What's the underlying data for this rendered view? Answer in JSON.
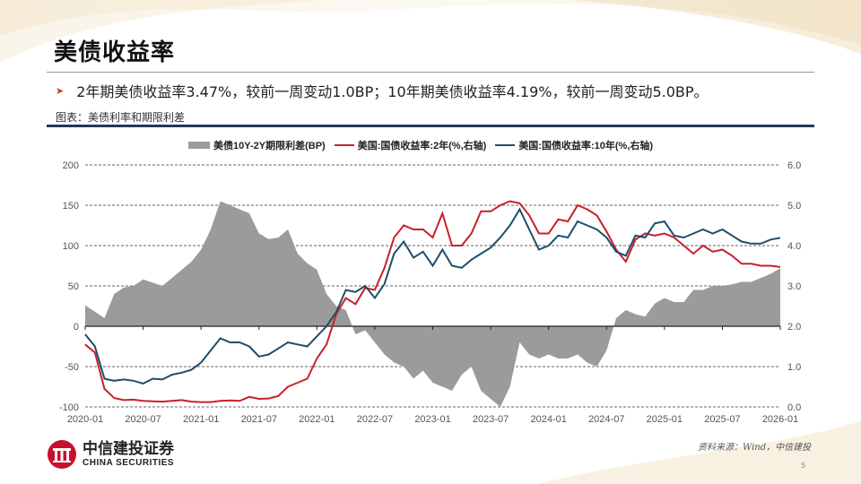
{
  "header": {
    "title": "美债收益率",
    "bullet": "2年期美债收益率3.47%，较前一周变动1.0BP；10年期美债收益率4.19%，较前一周变动5.0BP。",
    "figure_label": "图表：美债利率和期限利差"
  },
  "legend": {
    "items": [
      {
        "label": "美债10Y-2Y期限利差(BP)",
        "color": "#9b9b9b",
        "kind": "area"
      },
      {
        "label": "美国:国债收益率:2年(%,右轴)",
        "color": "#c8202a",
        "kind": "line"
      },
      {
        "label": "美国:国债收益率:10年(%,右轴)",
        "color": "#1d4e6b",
        "kind": "line"
      }
    ]
  },
  "footer": {
    "logo_cn": "中信建投证券",
    "logo_en": "CHINA SECURITIES",
    "source": "资料来源：Wind，中信建投",
    "page_number": "5"
  },
  "colors": {
    "spread": "#9b9b9b",
    "y2": "#c8202a",
    "y10": "#1d4e6b",
    "accent_rule": "#1f3a5a",
    "bullet_arrow": "#c0392b"
  },
  "chart_data": {
    "type": "line",
    "title": "美债利率和期限利差",
    "xlabel": "",
    "ylabel_left": "BP",
    "ylabel_right": "%",
    "ylim_left": [
      -100,
      200
    ],
    "ylim_right": [
      0.0,
      6.0
    ],
    "yticks_left": [
      "200",
      "150",
      "100",
      "50",
      "0",
      "-50",
      "-100"
    ],
    "yticks_right": [
      "6.0",
      "5.0",
      "4.0",
      "3.0",
      "2.0",
      "1.0",
      "0.0"
    ],
    "x_tick_labels": [
      "2020-01",
      "2020-07",
      "2021-01",
      "2021-07",
      "2022-01",
      "2022-07",
      "2023-01",
      "2023-07",
      "2024-01",
      "2024-07",
      "2025-01",
      "2025-07",
      "2026-01"
    ],
    "grid": "horizontal dashed",
    "legend_position": "top",
    "x": [
      "2020-01",
      "2020-02",
      "2020-03",
      "2020-04",
      "2020-05",
      "2020-06",
      "2020-07",
      "2020-08",
      "2020-09",
      "2020-10",
      "2020-11",
      "2020-12",
      "2021-01",
      "2021-02",
      "2021-03",
      "2021-04",
      "2021-05",
      "2021-06",
      "2021-07",
      "2021-08",
      "2021-09",
      "2021-10",
      "2021-11",
      "2021-12",
      "2022-01",
      "2022-02",
      "2022-03",
      "2022-04",
      "2022-05",
      "2022-06",
      "2022-07",
      "2022-08",
      "2022-09",
      "2022-10",
      "2022-11",
      "2022-12",
      "2023-01",
      "2023-02",
      "2023-03",
      "2023-04",
      "2023-05",
      "2023-06",
      "2023-07",
      "2023-08",
      "2023-09",
      "2023-10",
      "2023-11",
      "2023-12",
      "2024-01",
      "2024-02",
      "2024-03",
      "2024-04",
      "2024-05",
      "2024-06",
      "2024-07",
      "2024-08",
      "2024-09",
      "2024-10",
      "2024-11",
      "2024-12",
      "2025-01",
      "2025-02",
      "2025-03",
      "2025-04",
      "2025-05",
      "2025-06",
      "2025-07",
      "2025-08",
      "2025-09",
      "2025-10",
      "2025-11",
      "2025-12",
      "2026-01"
    ],
    "series": [
      {
        "name": "美债10Y-2Y期限利差(BP)",
        "axis": "left",
        "type": "area",
        "values": [
          26,
          18,
          10,
          40,
          48,
          50,
          58,
          54,
          50,
          60,
          70,
          80,
          95,
          120,
          155,
          150,
          145,
          140,
          115,
          108,
          110,
          120,
          90,
          78,
          70,
          40,
          25,
          20,
          -10,
          -5,
          -20,
          -35,
          -45,
          -50,
          -65,
          -55,
          -70,
          -75,
          -80,
          -60,
          -50,
          -80,
          -90,
          -100,
          -75,
          -20,
          -35,
          -40,
          -35,
          -40,
          -40,
          -35,
          -45,
          -50,
          -30,
          10,
          20,
          15,
          12,
          28,
          35,
          30,
          30,
          45,
          45,
          50,
          50,
          52,
          55,
          55,
          60,
          65,
          72
        ]
      },
      {
        "name": "美国:国债收益率:2年(%,右轴)",
        "axis": "right",
        "type": "line",
        "values": [
          1.55,
          1.35,
          0.45,
          0.22,
          0.17,
          0.18,
          0.15,
          0.14,
          0.13,
          0.15,
          0.17,
          0.13,
          0.12,
          0.12,
          0.15,
          0.16,
          0.15,
          0.25,
          0.2,
          0.21,
          0.27,
          0.5,
          0.6,
          0.7,
          1.2,
          1.55,
          2.3,
          2.7,
          2.55,
          2.95,
          2.9,
          3.45,
          4.2,
          4.5,
          4.4,
          4.4,
          4.2,
          4.8,
          4.0,
          4.0,
          4.3,
          4.85,
          4.85,
          5.0,
          5.1,
          5.05,
          4.75,
          4.3,
          4.3,
          4.65,
          4.6,
          5.0,
          4.9,
          4.75,
          4.35,
          3.9,
          3.6,
          4.15,
          4.3,
          4.25,
          4.3,
          4.2,
          4.0,
          3.8,
          4.0,
          3.85,
          3.9,
          3.75,
          3.55,
          3.55,
          3.5,
          3.5,
          3.47
        ]
      },
      {
        "name": "美国:国债收益率:10年(%,右轴)",
        "axis": "right",
        "type": "line",
        "values": [
          1.8,
          1.5,
          0.7,
          0.65,
          0.68,
          0.65,
          0.58,
          0.7,
          0.68,
          0.8,
          0.85,
          0.92,
          1.1,
          1.4,
          1.7,
          1.6,
          1.6,
          1.5,
          1.25,
          1.3,
          1.45,
          1.6,
          1.55,
          1.5,
          1.75,
          2.0,
          2.35,
          2.9,
          2.85,
          3.0,
          2.7,
          3.05,
          3.8,
          4.1,
          3.7,
          3.85,
          3.5,
          3.9,
          3.5,
          3.45,
          3.65,
          3.8,
          3.95,
          4.2,
          4.5,
          4.9,
          4.4,
          3.9,
          4.0,
          4.25,
          4.2,
          4.6,
          4.5,
          4.4,
          4.2,
          3.85,
          3.75,
          4.25,
          4.2,
          4.55,
          4.6,
          4.25,
          4.2,
          4.3,
          4.4,
          4.3,
          4.4,
          4.25,
          4.1,
          4.05,
          4.05,
          4.15,
          4.19
        ]
      }
    ]
  }
}
